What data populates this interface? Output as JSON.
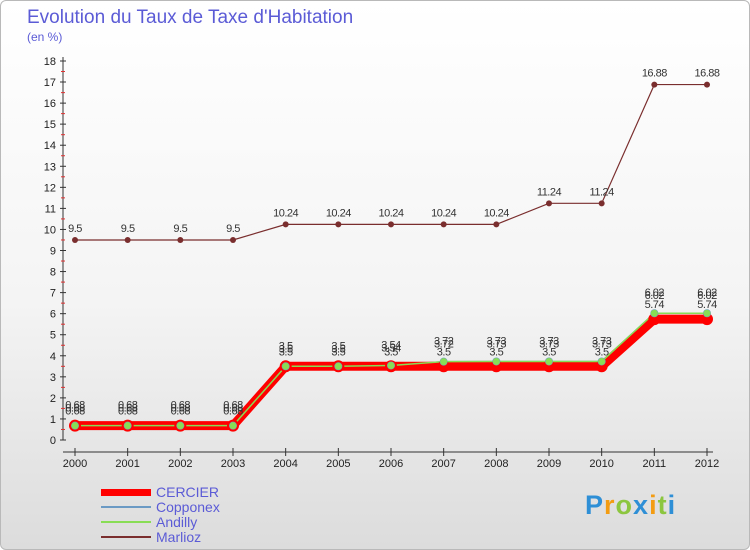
{
  "chart_data": {
    "type": "line",
    "title": "Evolution du Taux de Taxe d'Habitation",
    "subtitle": "(en %)",
    "xlabel": "",
    "ylabel": "",
    "ylim": [
      0,
      18
    ],
    "yticks": [
      0,
      1,
      2,
      3,
      4,
      5,
      6,
      7,
      8,
      9,
      10,
      11,
      12,
      13,
      14,
      15,
      16,
      17,
      18
    ],
    "categories": [
      "2000",
      "2001",
      "2002",
      "2003",
      "2004",
      "2005",
      "2006",
      "2007",
      "2008",
      "2009",
      "2010",
      "2011",
      "2012"
    ],
    "series": [
      {
        "name": "CERCIER",
        "color": "#ff0000",
        "values": [
          0.68,
          0.68,
          0.68,
          0.68,
          3.5,
          3.5,
          3.5,
          3.5,
          3.5,
          3.5,
          3.5,
          5.74,
          5.74
        ],
        "labels": [
          "0.68",
          "0.68",
          "0.68",
          "0.68",
          "3.5",
          "3.5",
          "3.5",
          "3.5",
          "3.5",
          "3.5",
          "3.5",
          "5.74",
          "5.74"
        ]
      },
      {
        "name": "Copponex",
        "color": "#6b9ac4",
        "values": [
          0.68,
          0.68,
          0.68,
          0.68,
          3.5,
          3.5,
          3.54,
          3.72,
          3.73,
          3.73,
          3.73,
          6.02,
          6.02
        ],
        "labels": [
          "0.68",
          "0.68",
          "0.68",
          "0.68",
          "3.5",
          "3.5",
          "3.54",
          "3.72",
          "3.73",
          "3.73",
          "3.73",
          "6.02",
          "6.02"
        ]
      },
      {
        "name": "Andilly",
        "color": "#88dd55",
        "values": [
          0.68,
          0.68,
          0.68,
          0.68,
          3.5,
          3.5,
          3.54,
          3.72,
          3.73,
          3.73,
          3.73,
          6.02,
          6.02
        ],
        "labels": [
          "0.68",
          "0.68",
          "0.68",
          "0.68",
          "3.5",
          "3.5",
          "3.54",
          "3.72",
          "3.73",
          "3.73",
          "3.73",
          "6.02",
          "6.02"
        ]
      },
      {
        "name": "Marlioz",
        "color": "#7a2e2e",
        "values": [
          9.5,
          9.5,
          9.5,
          9.5,
          10.24,
          10.24,
          10.24,
          10.24,
          10.24,
          11.24,
          11.24,
          16.88,
          16.88
        ],
        "labels": [
          "9.5",
          "9.5",
          "9.5",
          "9.5",
          "10.24",
          "10.24",
          "10.24",
          "10.24",
          "10.24",
          "11.24",
          "11.24",
          "16.88",
          "16.88"
        ]
      }
    ],
    "legend_position": "bottom-left",
    "grid": false
  },
  "brand": {
    "letters": [
      "P",
      "r",
      "o",
      "x",
      "i",
      "t",
      "i"
    ],
    "colors": [
      "#2e8fd6",
      "#f39c12",
      "#8cc63f",
      "#2e8fd6",
      "#f39c12",
      "#8cc63f",
      "#2e8fd6"
    ]
  }
}
